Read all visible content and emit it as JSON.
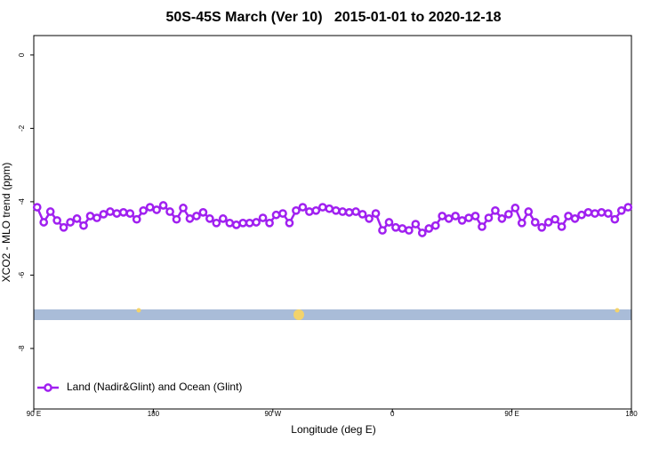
{
  "chart_data": {
    "type": "line",
    "title": "50S-45S March (Ver 10)   2015-01-01 to 2020-12-18",
    "xlabel": "Longitude (deg E)",
    "ylabel": "XCO2 - MLO trend (ppm)",
    "xlim": [
      90,
      540
    ],
    "xticks": [
      {
        "value": 90,
        "label": "90 E"
      },
      {
        "value": 180,
        "label": "180"
      },
      {
        "value": 270,
        "label": "90 W"
      },
      {
        "value": 360,
        "label": "0"
      },
      {
        "value": 450,
        "label": "90 E"
      },
      {
        "value": 540,
        "label": "180"
      }
    ],
    "ylim": [
      -9.65,
      0.53
    ],
    "yticks": [
      0,
      -2,
      -4,
      -6,
      -8
    ],
    "legend_position": "lower left",
    "x": [
      92.5,
      97.5,
      102.5,
      107.5,
      112.5,
      117.5,
      122.5,
      127.5,
      132.5,
      137.5,
      142.5,
      147.5,
      152.5,
      157.5,
      162.5,
      167.5,
      172.5,
      177.5,
      182.5,
      187.5,
      192.5,
      197.5,
      202.5,
      207.5,
      212.5,
      217.5,
      222.5,
      227.5,
      232.5,
      237.5,
      242.5,
      247.5,
      252.5,
      257.5,
      262.5,
      267.5,
      272.5,
      277.5,
      282.5,
      287.5,
      292.5,
      297.5,
      302.5,
      307.5,
      312.5,
      317.5,
      322.5,
      327.5,
      332.5,
      337.5,
      342.5,
      347.5,
      352.5,
      357.5,
      362.5,
      367.5,
      372.5,
      377.5,
      382.5,
      387.5,
      392.5,
      397.5,
      402.5,
      407.5,
      412.5,
      417.5,
      422.5,
      427.5,
      432.5,
      437.5,
      442.5,
      447.5,
      452.5,
      457.5,
      462.5,
      467.5,
      472.5,
      477.5,
      482.5,
      487.5,
      492.5,
      497.5,
      502.5,
      507.5,
      512.5,
      517.5,
      522.5,
      527.5,
      532.5,
      537.5
    ],
    "series": [
      {
        "name": "Land (Nadir&Glint) and Ocean (Glint)",
        "color": "#a020f0",
        "values": [
          -4.15,
          -4.56,
          -4.27,
          -4.51,
          -4.7,
          -4.56,
          -4.46,
          -4.65,
          -4.39,
          -4.44,
          -4.34,
          -4.27,
          -4.32,
          -4.29,
          -4.32,
          -4.48,
          -4.24,
          -4.15,
          -4.22,
          -4.1,
          -4.27,
          -4.48,
          -4.17,
          -4.46,
          -4.39,
          -4.29,
          -4.46,
          -4.58,
          -4.46,
          -4.58,
          -4.63,
          -4.58,
          -4.58,
          -4.56,
          -4.44,
          -4.58,
          -4.36,
          -4.32,
          -4.58,
          -4.24,
          -4.15,
          -4.27,
          -4.24,
          -4.15,
          -4.19,
          -4.24,
          -4.27,
          -4.29,
          -4.27,
          -4.34,
          -4.46,
          -4.32,
          -4.78,
          -4.56,
          -4.7,
          -4.73,
          -4.78,
          -4.61,
          -4.85,
          -4.73,
          -4.65,
          -4.39,
          -4.46,
          -4.39,
          -4.51,
          -4.44,
          -4.39,
          -4.68,
          -4.44,
          -4.24,
          -4.46,
          -4.34,
          -4.17,
          -4.58,
          -4.27,
          -4.56,
          -4.7,
          -4.56,
          -4.48,
          -4.68,
          -4.39,
          -4.46,
          -4.36,
          -4.29,
          -4.32,
          -4.29,
          -4.32,
          -4.48,
          -4.24,
          -4.15
        ]
      }
    ]
  }
}
